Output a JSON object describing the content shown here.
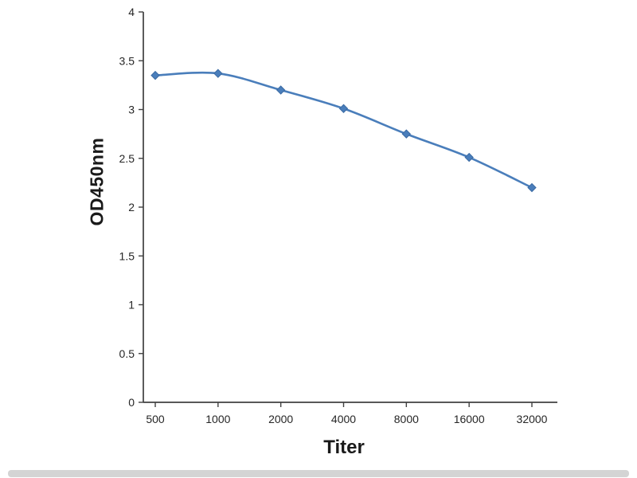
{
  "chart_data": {
    "type": "line",
    "categories": [
      "500",
      "1000",
      "2000",
      "4000",
      "8000",
      "16000",
      "32000"
    ],
    "values": [
      3.35,
      3.37,
      3.2,
      3.01,
      2.75,
      2.51,
      2.2
    ],
    "title": "",
    "xlabel": "Titer",
    "ylabel": "OD450nm",
    "ylim": [
      0,
      4
    ],
    "ytick_step": 0.5,
    "grid": false,
    "legend": "none",
    "line_color": "#4a7ebb",
    "marker": "diamond",
    "axis_color": "#404040",
    "tick_label_color": "#262626"
  }
}
